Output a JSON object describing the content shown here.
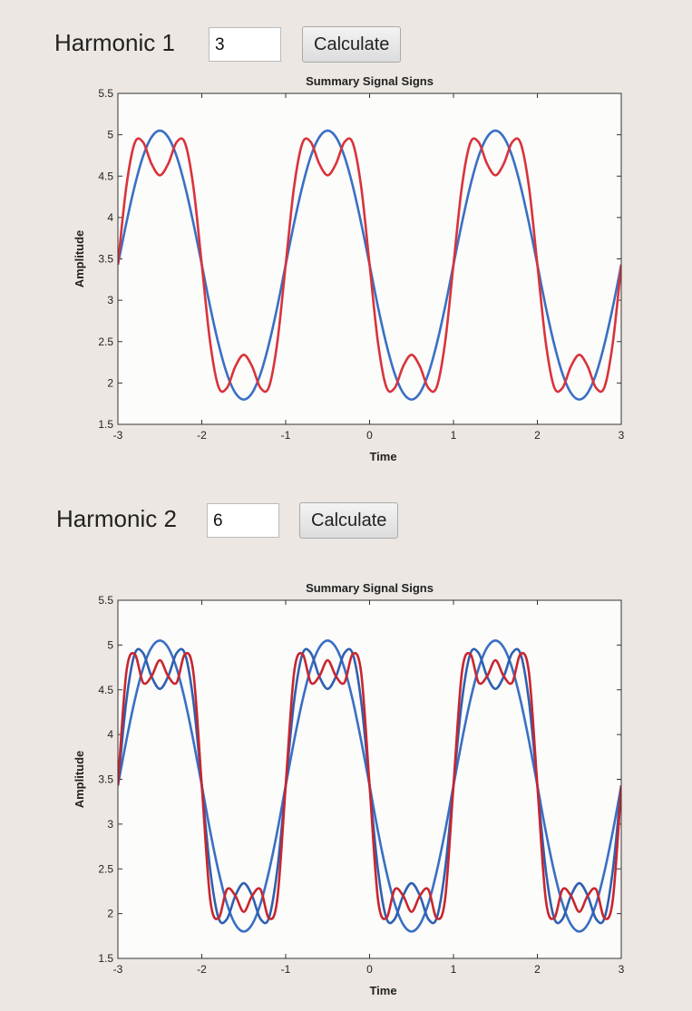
{
  "controls": [
    {
      "label": "Harmonic 1",
      "input": "3",
      "button": "Calculate"
    },
    {
      "label": "Harmonic 2",
      "input": "6",
      "button": "Calculate"
    }
  ],
  "chart_data": [
    {
      "type": "line",
      "title": "Summary Signal Signs",
      "x_label": "Time",
      "y_label": "Amplitude",
      "x": [
        -3,
        -2.9,
        -2.8,
        -2.7,
        -2.6,
        -2.5,
        -2.4,
        -2.3,
        -2.2,
        -2.1,
        -2,
        -1.9,
        -1.8,
        -1.7,
        -1.6,
        -1.5,
        -1.4,
        -1.3,
        -1.2,
        -1.1,
        -1,
        -0.9,
        -0.8,
        -0.7,
        -0.6,
        -0.5,
        -0.4,
        -0.3,
        -0.2,
        -0.1,
        0,
        0.1,
        0.2,
        0.3,
        0.4,
        0.5,
        0.6,
        0.7,
        0.8,
        0.9,
        1,
        1.1,
        1.2,
        1.3,
        1.4,
        1.5,
        1.6,
        1.7,
        1.8,
        1.9,
        2,
        2.1,
        2.2,
        2.3,
        2.4,
        2.5,
        2.6,
        2.7,
        2.8,
        2.9,
        3
      ],
      "series": [
        {
          "color": "#3a6fc4",
          "values": [
            3.43,
            3.93,
            4.38,
            4.74,
            4.97,
            5.05,
            4.97,
            4.74,
            4.38,
            3.93,
            3.43,
            2.92,
            2.47,
            2.11,
            1.88,
            1.8,
            1.88,
            2.11,
            2.47,
            2.92,
            3.43,
            3.93,
            4.38,
            4.74,
            4.97,
            5.05,
            4.97,
            4.74,
            4.38,
            3.93,
            3.43,
            2.92,
            2.47,
            2.11,
            1.88,
            1.8,
            1.88,
            2.11,
            2.47,
            2.92,
            3.43,
            3.93,
            4.38,
            4.74,
            4.97,
            5.05,
            4.97,
            4.74,
            4.38,
            3.93,
            3.43,
            2.92,
            2.47,
            2.11,
            1.88,
            1.8,
            1.88,
            2.11,
            2.47,
            2.92,
            3.43
          ]
        },
        {
          "color": "#d9333a",
          "values": [
            3.43,
            4.37,
            4.9,
            4.91,
            4.65,
            4.51,
            4.65,
            4.91,
            4.9,
            4.37,
            3.43,
            2.49,
            1.95,
            1.94,
            2.2,
            2.34,
            2.2,
            1.94,
            1.95,
            2.49,
            3.43,
            4.37,
            4.9,
            4.91,
            4.65,
            4.51,
            4.65,
            4.91,
            4.9,
            4.37,
            3.43,
            2.49,
            1.95,
            1.94,
            2.2,
            2.34,
            2.2,
            1.94,
            1.95,
            2.49,
            3.43,
            4.37,
            4.9,
            4.91,
            4.65,
            4.51,
            4.65,
            4.91,
            4.9,
            4.37,
            3.43,
            2.49,
            1.95,
            1.94,
            2.2,
            2.34,
            2.2,
            1.94,
            1.95,
            2.49,
            3.43
          ]
        }
      ],
      "xlim": [
        -3,
        3
      ],
      "xticks": [
        -3,
        -2,
        -1,
        0,
        1,
        2,
        3
      ],
      "ylim": [
        1.5,
        5.5
      ],
      "yticks": [
        1.5,
        2,
        2.5,
        3,
        3.5,
        4,
        4.5,
        5,
        5.5
      ]
    },
    {
      "type": "line",
      "title": "Summary Signal Signs",
      "x_label": "Time",
      "y_label": "Amplitude",
      "x": [
        -3,
        -2.9,
        -2.8,
        -2.7,
        -2.6,
        -2.5,
        -2.4,
        -2.3,
        -2.2,
        -2.1,
        -2,
        -1.9,
        -1.8,
        -1.7,
        -1.6,
        -1.5,
        -1.4,
        -1.3,
        -1.2,
        -1.1,
        -1,
        -0.9,
        -0.8,
        -0.7,
        -0.6,
        -0.5,
        -0.4,
        -0.3,
        -0.2,
        -0.1,
        0,
        0.1,
        0.2,
        0.3,
        0.4,
        0.5,
        0.6,
        0.7,
        0.8,
        0.9,
        1,
        1.1,
        1.2,
        1.3,
        1.4,
        1.5,
        1.6,
        1.7,
        1.8,
        1.9,
        2,
        2.1,
        2.2,
        2.3,
        2.4,
        2.5,
        2.6,
        2.7,
        2.8,
        2.9,
        3
      ],
      "series": [
        {
          "color": "#3a6fc4",
          "values": [
            3.43,
            3.93,
            4.38,
            4.74,
            4.97,
            5.05,
            4.97,
            4.74,
            4.38,
            3.93,
            3.43,
            2.92,
            2.47,
            2.11,
            1.88,
            1.8,
            1.88,
            2.11,
            2.47,
            2.92,
            3.43,
            3.93,
            4.38,
            4.74,
            4.97,
            5.05,
            4.97,
            4.74,
            4.38,
            3.93,
            3.43,
            2.92,
            2.47,
            2.11,
            1.88,
            1.8,
            1.88,
            2.11,
            2.47,
            2.92,
            3.43,
            3.93,
            4.38,
            4.74,
            4.97,
            5.05,
            4.97,
            4.74,
            4.38,
            3.93,
            3.43,
            2.92,
            2.47,
            2.11,
            1.88,
            1.8,
            1.88,
            2.11,
            2.47,
            2.92,
            3.43
          ]
        },
        {
          "color": "#2f5fb0",
          "values": [
            3.43,
            4.37,
            4.9,
            4.91,
            4.65,
            4.51,
            4.65,
            4.91,
            4.9,
            4.37,
            3.43,
            2.49,
            1.95,
            1.94,
            2.2,
            2.34,
            2.2,
            1.94,
            1.95,
            2.49,
            3.43,
            4.37,
            4.9,
            4.91,
            4.65,
            4.51,
            4.65,
            4.91,
            4.9,
            4.37,
            3.43,
            2.49,
            1.95,
            1.94,
            2.2,
            2.34,
            2.2,
            1.94,
            1.95,
            2.49,
            3.43,
            4.37,
            4.9,
            4.91,
            4.65,
            4.51,
            4.65,
            4.91,
            4.9,
            4.37,
            3.43,
            2.49,
            1.95,
            1.94,
            2.2,
            2.34,
            2.2,
            1.94,
            1.95,
            2.49,
            3.43
          ]
        },
        {
          "color": "#c8262e",
          "values": [
            3.43,
            4.69,
            4.9,
            4.58,
            4.65,
            4.83,
            4.65,
            4.58,
            4.9,
            4.69,
            3.43,
            2.16,
            1.95,
            2.27,
            2.2,
            2.02,
            2.2,
            2.27,
            1.95,
            2.16,
            3.43,
            4.69,
            4.9,
            4.58,
            4.65,
            4.83,
            4.65,
            4.58,
            4.9,
            4.69,
            3.43,
            2.16,
            1.95,
            2.27,
            2.2,
            2.02,
            2.2,
            2.27,
            1.95,
            2.16,
            3.43,
            4.69,
            4.9,
            4.58,
            4.65,
            4.83,
            4.65,
            4.58,
            4.9,
            4.69,
            3.43,
            2.16,
            1.95,
            2.27,
            2.2,
            2.02,
            2.2,
            2.27,
            1.95,
            2.16,
            3.43
          ]
        }
      ],
      "xlim": [
        -3,
        3
      ],
      "xticks": [
        -3,
        -2,
        -1,
        0,
        1,
        2,
        3
      ],
      "ylim": [
        1.5,
        5.5
      ],
      "yticks": [
        1.5,
        2,
        2.5,
        3,
        3.5,
        4,
        4.5,
        5,
        5.5
      ]
    }
  ]
}
